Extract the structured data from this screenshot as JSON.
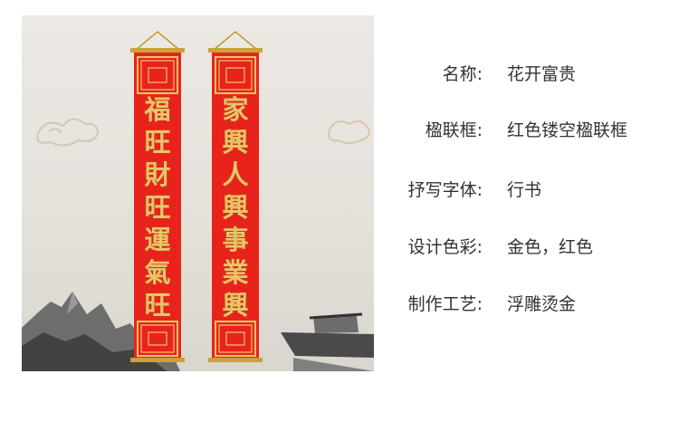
{
  "couplets": {
    "left": "福旺財旺運氣旺",
    "right": "家興人興事業興"
  },
  "specs": [
    {
      "label": "名称:",
      "value": "花开富贵"
    },
    {
      "label": "楹联框:",
      "value": "红色镂空楹联框"
    },
    {
      "label": "抒写字体:",
      "value": "行书"
    },
    {
      "label": "设计色彩:",
      "value": "金色，红色"
    },
    {
      "label": "制作工艺:",
      "value": "浮雕烫金"
    }
  ],
  "colors": {
    "couplet_red": "#e8231c",
    "gold": "#e9c46a",
    "text": "#333333"
  }
}
